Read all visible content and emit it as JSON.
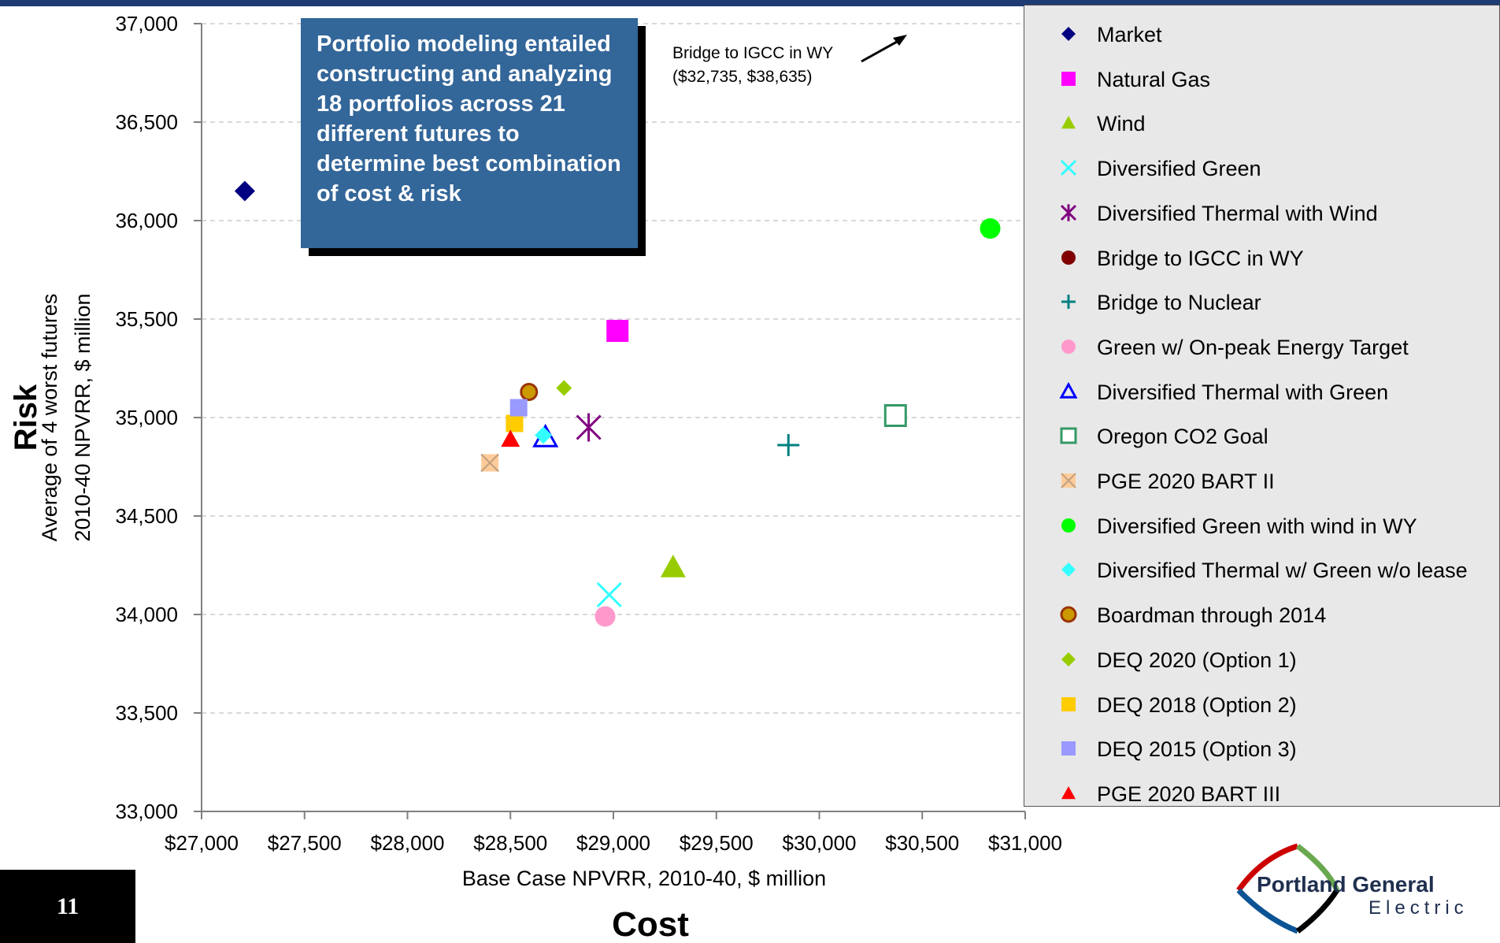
{
  "chart_data": {
    "type": "scatter",
    "xlabel": "Base Case NPVRR, 2010-40, $ million",
    "xlabel_main": "Cost",
    "ylabel_main": "Risk",
    "ylabel_line1": "Average of 4 worst futures",
    "ylabel_line2": "2010-40 NPVRR, $ million",
    "xlim": [
      27000,
      31000
    ],
    "ylim": [
      33000,
      37000
    ],
    "x_ticks": [
      "$27,000",
      "$27,500",
      "$28,000",
      "$28,500",
      "$29,000",
      "$29,500",
      "$30,000",
      "$30,500",
      "$31,000"
    ],
    "y_ticks": [
      "33,000",
      "33,500",
      "34,000",
      "34,500",
      "35,000",
      "35,500",
      "36,000",
      "36,500",
      "37,000"
    ],
    "grid": "horizontal dashed",
    "legend_position": "right",
    "series": [
      {
        "name": "Market",
        "marker": "diamond",
        "color": "#000080",
        "x": 27210,
        "y": 36150
      },
      {
        "name": "Natural Gas",
        "marker": "square",
        "color": "#ff00ff",
        "x": 29020,
        "y": 35440
      },
      {
        "name": "Wind",
        "marker": "triangle",
        "color": "#99cc00",
        "x": 29290,
        "y": 34240
      },
      {
        "name": "Diversified Green",
        "marker": "x",
        "color": "#33ffff",
        "x": 28980,
        "y": 34100
      },
      {
        "name": "Diversified Thermal with Wind",
        "marker": "star",
        "color": "#800080",
        "x": 28880,
        "y": 34950
      },
      {
        "name": "Bridge to IGCC in WY",
        "marker": "circle",
        "color": "#800000",
        "x": null,
        "y": null
      },
      {
        "name": "Bridge to Nuclear",
        "marker": "plus",
        "color": "#008080",
        "x": 29850,
        "y": 34860
      },
      {
        "name": "Green w/ On-peak Energy Target",
        "marker": "circle",
        "color": "#ff99cc",
        "x": 28960,
        "y": 33990
      },
      {
        "name": "Diversified Thermal with Green",
        "marker": "triangle-open",
        "color": "#0000ff",
        "x": 28670,
        "y": 34900
      },
      {
        "name": "Oregon CO2 Goal",
        "marker": "square-open",
        "color": "#339966",
        "x": 30370,
        "y": 35010
      },
      {
        "name": "PGE 2020 BART II",
        "marker": "square-x",
        "color": "#ffcc99",
        "x": 28400,
        "y": 34770
      },
      {
        "name": "Diversified Green with wind in WY",
        "marker": "circle",
        "color": "#00ff00",
        "x": 30830,
        "y": 35960
      },
      {
        "name": "Diversified Thermal w/ Green w/o lease",
        "marker": "diamond",
        "color": "#33ffff",
        "x": 28660,
        "y": 34910
      },
      {
        "name": "Boardman through 2014",
        "marker": "circle-ring",
        "color": "#cc9900",
        "x": 28590,
        "y": 35130
      },
      {
        "name": "DEQ 2020 (Option 1)",
        "marker": "diamond",
        "color": "#99cc00",
        "x": 28760,
        "y": 35150
      },
      {
        "name": "DEQ 2018 (Option 2)",
        "marker": "square",
        "color": "#ffcc00",
        "x": 28520,
        "y": 34970
      },
      {
        "name": "DEQ 2015 (Option 3)",
        "marker": "square",
        "color": "#9999ff",
        "x": 28540,
        "y": 35050
      },
      {
        "name": "PGE 2020 BART III",
        "marker": "triangle",
        "color": "#ff0000",
        "x": 28500,
        "y": 34890
      }
    ],
    "annotations": [
      {
        "text_line1": "Bridge to IGCC in WY",
        "text_line2": "($32,735, $38,635)",
        "x": 32735,
        "y": 38635
      }
    ]
  },
  "callout": {
    "text": "Portfolio modeling entailed constructing and analyzing 18 portfolios across 21 different futures to determine best combination of cost & risk"
  },
  "slide": {
    "number": "11"
  },
  "logo": {
    "line1": "Portland General",
    "line2": "Electric",
    "colors": [
      "#cc0000",
      "#6aa84f",
      "#0b5394",
      "#000000"
    ]
  },
  "colors": {
    "topbar": "#1f3b73",
    "callout_bg": "#336699",
    "legend_bg": "#e8e8e8"
  }
}
